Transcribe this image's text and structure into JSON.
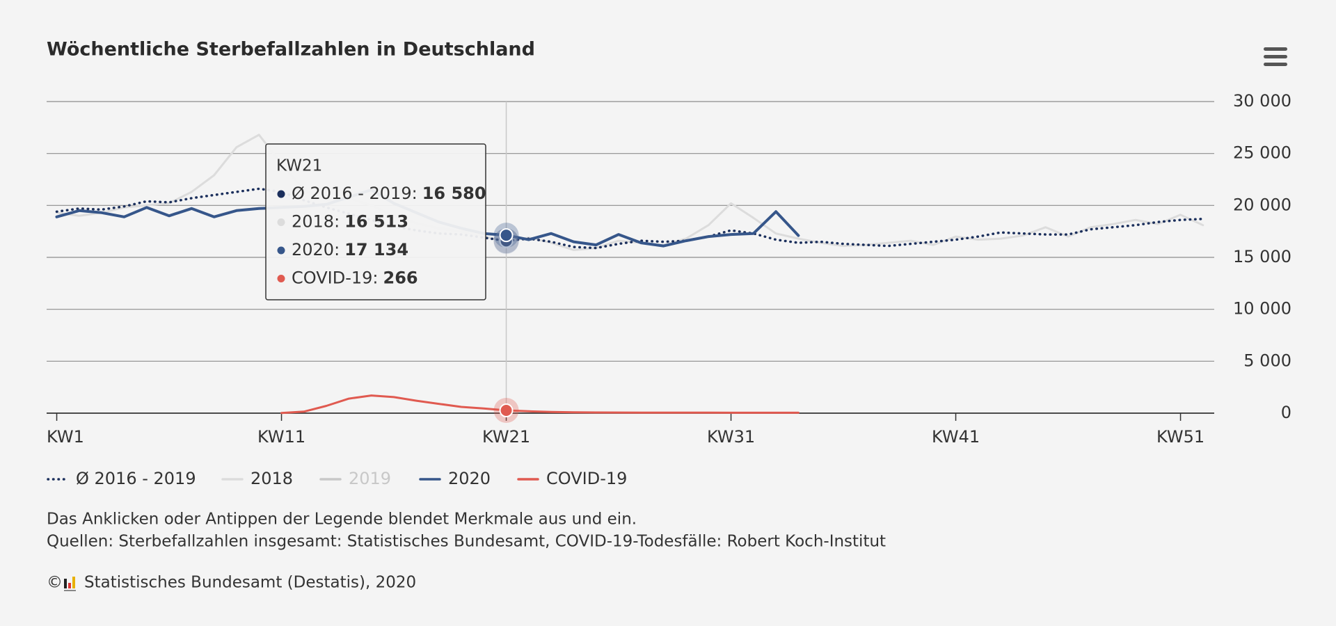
{
  "chart_data": {
    "type": "line",
    "title": "Wöchentliche Sterbefallzahlen in Deutschland",
    "x": [
      1,
      2,
      3,
      4,
      5,
      6,
      7,
      8,
      9,
      10,
      11,
      12,
      13,
      14,
      15,
      16,
      17,
      18,
      19,
      20,
      21,
      22,
      23,
      24,
      25,
      26,
      27,
      28,
      29,
      30,
      31,
      32,
      33,
      34,
      35,
      36,
      37,
      38,
      39,
      40,
      41,
      42,
      43,
      44,
      45,
      46,
      47,
      48,
      49,
      50,
      51,
      52
    ],
    "xlim": [
      0.55,
      52.5
    ],
    "xticks": [
      {
        "value": 1,
        "label": "KW1"
      },
      {
        "value": 11,
        "label": "KW11"
      },
      {
        "value": 21,
        "label": "KW21"
      },
      {
        "value": 31,
        "label": "KW31"
      },
      {
        "value": 41,
        "label": "KW41"
      },
      {
        "value": 51,
        "label": "KW51"
      }
    ],
    "ylim": [
      0,
      30000
    ],
    "yticks": [
      0,
      {
        "value": 5000,
        "label": "5 000"
      },
      {
        "value": 10000,
        "label": "10 000"
      },
      {
        "value": 15000,
        "label": "15 000"
      },
      {
        "value": 20000,
        "label": "20 000"
      },
      {
        "value": 25000,
        "label": "25 000"
      },
      {
        "value": 30000,
        "label": "30 000"
      }
    ],
    "grid": true,
    "series": [
      {
        "name": "Ø 2016 - 2019",
        "color": "#1b2f5c",
        "style": "dotted",
        "values": [
          19400,
          19700,
          19600,
          19900,
          20400,
          20300,
          20700,
          21000,
          21300,
          21600,
          21300,
          20500,
          19800,
          19200,
          18600,
          18000,
          17600,
          17300,
          17200,
          16900,
          16580,
          16800,
          16500,
          16000,
          15900,
          16300,
          16600,
          16500,
          16600,
          17000,
          17600,
          17300,
          16700,
          16400,
          16500,
          16300,
          16200,
          16100,
          16300,
          16500,
          16700,
          17000,
          17400,
          17300,
          17200,
          17200,
          17700,
          17900,
          18100,
          18400,
          18600,
          18700
        ]
      },
      {
        "name": "2018",
        "color": "#dcdcdc",
        "style": "solid",
        "values": [
          19300,
          19000,
          19300,
          19800,
          20000,
          20200,
          21300,
          22900,
          25600,
          26800,
          24000,
          21500,
          20500,
          20700,
          20000,
          19000,
          18300,
          17800,
          17500,
          17000,
          16513,
          16900,
          16400,
          15700,
          15900,
          16600,
          16400,
          16200,
          16800,
          18100,
          20200,
          18800,
          17300,
          16800,
          16400,
          16100,
          16200,
          16400,
          16600,
          16200,
          17000,
          16700,
          16800,
          17100,
          17900,
          17000,
          17900,
          18200,
          18600,
          18200,
          19100,
          18100
        ]
      },
      {
        "name": "2019",
        "color": "#c8c8c8",
        "style": "solid",
        "visible": false
      },
      {
        "name": "2020",
        "color": "#36568a",
        "style": "solid",
        "values": [
          18900,
          19500,
          19300,
          18900,
          19800,
          19000,
          19700,
          18900,
          19500,
          19700,
          19800,
          19900,
          20100,
          20800,
          21500,
          20200,
          19300,
          18400,
          17800,
          17300,
          17134,
          16700,
          17300,
          16500,
          16200,
          17200,
          16400,
          16100,
          16600,
          17000,
          17200,
          17300,
          19400,
          17100,
          null,
          null,
          null,
          null,
          null,
          null,
          null,
          null,
          null,
          null,
          null,
          null,
          null,
          null,
          null,
          null,
          null,
          null
        ]
      },
      {
        "name": "COVID-19",
        "color": "#e05a50",
        "style": "solid",
        "values": [
          null,
          null,
          null,
          null,
          null,
          null,
          null,
          null,
          null,
          null,
          20,
          150,
          700,
          1400,
          1700,
          1550,
          1200,
          900,
          600,
          450,
          266,
          180,
          120,
          90,
          70,
          60,
          55,
          50,
          45,
          45,
          40,
          40,
          40,
          40,
          null,
          null,
          null,
          null,
          null,
          null,
          null,
          null,
          null,
          null,
          null,
          null,
          null,
          null,
          null,
          null,
          null,
          null
        ]
      }
    ],
    "tooltip": {
      "title": "KW21",
      "rows": [
        {
          "name": "Ø 2016 - 2019:",
          "value": "16 580"
        },
        {
          "name": "2018:",
          "value": "16 513"
        },
        {
          "name": "2020:",
          "value": "17 134"
        },
        {
          "name": "COVID-19:",
          "value": "266"
        }
      ]
    },
    "note": "Das Anklicken oder Antippen der Legende blendet Merkmale aus und ein.",
    "source": "Quellen: Sterbefallzahlen insgesamt: Statistisches Bundesamt, COVID-19-Todesfälle: Robert Koch-Institut",
    "copyright_symbol": "©",
    "copyright": "Statistisches Bundesamt (Destatis), 2020"
  }
}
